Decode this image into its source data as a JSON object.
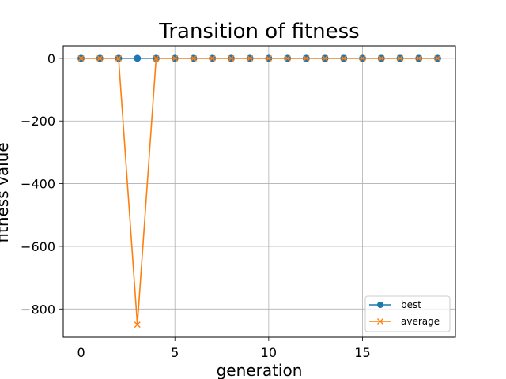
{
  "chart_data": {
    "type": "line",
    "title": "Transition of fitness",
    "xlabel": "generation",
    "ylabel": "fitness value",
    "xlim": [
      -0.95,
      19.95
    ],
    "ylim": [
      -890,
      40
    ],
    "xticks": [
      0,
      5,
      10,
      15
    ],
    "yticks": [
      0,
      -200,
      -400,
      -600,
      -800
    ],
    "xtick_labels": [
      "0",
      "5",
      "10",
      "15"
    ],
    "ytick_labels": [
      "0",
      "−200",
      "−400",
      "−600",
      "−800"
    ],
    "grid": true,
    "legend_position": "lower right",
    "x": [
      0,
      1,
      2,
      3,
      4,
      5,
      6,
      7,
      8,
      9,
      10,
      11,
      12,
      13,
      14,
      15,
      16,
      17,
      18,
      19
    ],
    "series": [
      {
        "name": "best",
        "color": "#1f77b4",
        "marker": "circle",
        "values": [
          0,
          0,
          0,
          0,
          0,
          0,
          0,
          0,
          0,
          0,
          0,
          0,
          0,
          0,
          0,
          0,
          0,
          0,
          0,
          0
        ]
      },
      {
        "name": "average",
        "color": "#ff7f0e",
        "marker": "x",
        "values": [
          0,
          0,
          0,
          -850,
          0,
          0,
          0,
          0,
          0,
          0,
          0,
          0,
          0,
          0,
          0,
          0,
          0,
          0,
          0,
          0
        ]
      }
    ]
  }
}
